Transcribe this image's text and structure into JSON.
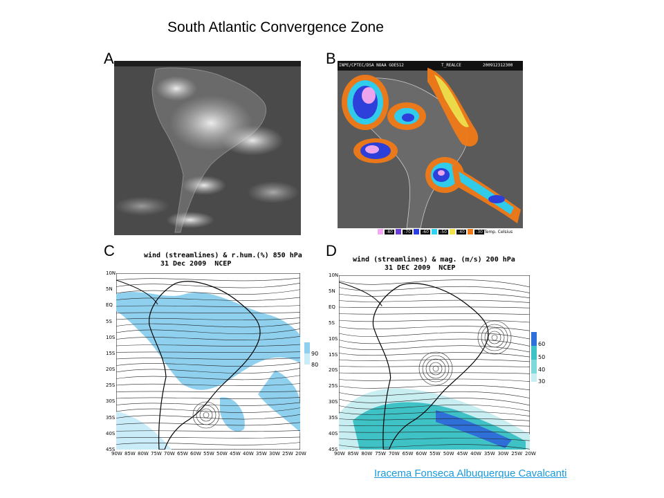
{
  "title": "South Atlantic Convergence Zone",
  "panels": {
    "a": {
      "label": "A"
    },
    "b": {
      "label": "B",
      "header_left": "INPE/CPTEC/DSA NOAA GOES12",
      "header_mid": "T_REALCE",
      "header_right": "200912312300",
      "temp_scale": [
        "-80",
        "-70",
        "-60",
        "-50",
        "-40",
        "-30"
      ],
      "temp_colors": [
        "#f3a8f3",
        "#6a3fd6",
        "#2b3ee0",
        "#2fd2f2",
        "#f4e04a",
        "#f07a17"
      ],
      "temp_unit": "Temp. Celsius"
    },
    "c": {
      "label": "C",
      "line1": "wind (streamlines) & r.hum.(%) 850 hPa",
      "line2": "31 Dec 2009  NCEP",
      "legend": [
        "90",
        "80"
      ]
    },
    "d": {
      "label": "D",
      "line1": "wind (streamlines) & mag. (m/s) 200 hPa",
      "line2": "31 DEC 2009  NCEP",
      "legend": [
        "60",
        "50",
        "40",
        "30"
      ]
    }
  },
  "lat_ticks": [
    "10N",
    "5N",
    "EQ",
    "5S",
    "10S",
    "15S",
    "20S",
    "25S",
    "30S",
    "35S",
    "40S",
    "45S"
  ],
  "lon_ticks": [
    "90W",
    "85W",
    "80W",
    "75W",
    "70W",
    "65W",
    "60W",
    "55W",
    "50W",
    "45W",
    "40W",
    "35W",
    "30W",
    "25W",
    "20W"
  ],
  "credit": "Iracema Fonseca Albuquerque Cavalcanti",
  "colors": {
    "credit_link": "#1a9adb",
    "humid_fill": "#8fd0ee",
    "jet_fill_light": "#bfe9ef",
    "jet_fill_mid": "#3fc2c6",
    "jet_fill_dark": "#2f6fd8"
  }
}
